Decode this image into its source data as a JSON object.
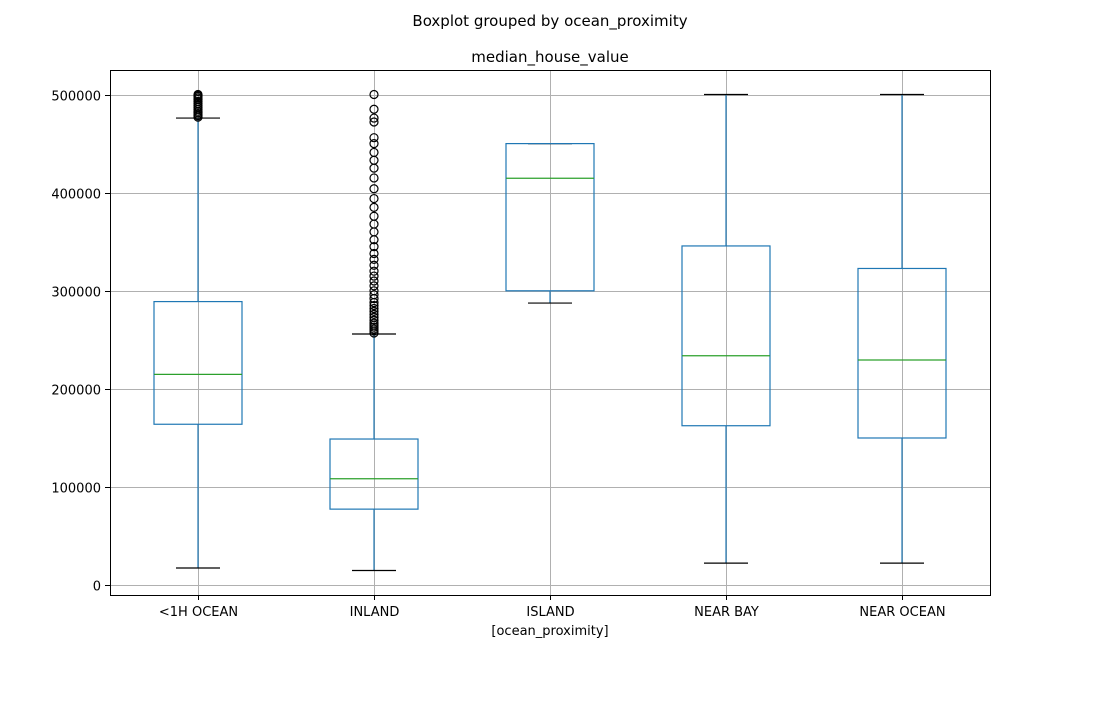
{
  "chart_data": {
    "type": "boxplot",
    "suptitle": "Boxplot grouped by ocean_proximity",
    "title": "median_house_value",
    "xlabel": "[ocean_proximity]",
    "ylabel": "",
    "ylim": [
      -10000,
      525000
    ],
    "yticks": [
      0,
      100000,
      200000,
      300000,
      400000,
      500000
    ],
    "grid": true,
    "colors": {
      "box": "#1f77b4",
      "median": "#2ca02c",
      "cap": "#000000",
      "grid": "#b0b0b0"
    },
    "categories": [
      "<1H OCEAN",
      "INLAND",
      "ISLAND",
      "NEAR BAY",
      "NEAR OCEAN"
    ],
    "boxes": [
      {
        "category": "<1H OCEAN",
        "whisker_low": 17500,
        "q1": 164000,
        "median": 214800,
        "q3": 289000,
        "whisker_high": 476000,
        "outliers": [
          477000,
          478500,
          480000,
          481500,
          483000,
          485000,
          487000,
          489000,
          491000,
          493000,
          495000,
          496500,
          498000,
          499000,
          500001
        ]
      },
      {
        "category": "INLAND",
        "whisker_low": 14999,
        "q1": 77500,
        "median": 108500,
        "q3": 148950,
        "whisker_high": 256000,
        "outliers": [
          257000,
          259000,
          261000,
          263000,
          265000,
          267000,
          270000,
          273000,
          276000,
          279000,
          282000,
          285000,
          288000,
          292000,
          296000,
          300000,
          305000,
          310000,
          315000,
          320000,
          326000,
          332000,
          338000,
          345000,
          352000,
          360000,
          368000,
          376000,
          385000,
          394000,
          404000,
          415000,
          425000,
          433000,
          441000,
          450000,
          456000,
          472000,
          476000,
          485000,
          500001
        ]
      },
      {
        "category": "ISLAND",
        "whisker_low": 287500,
        "q1": 300000,
        "median": 414700,
        "q3": 450000,
        "whisker_high": 450000,
        "outliers": []
      },
      {
        "category": "NEAR BAY",
        "whisker_low": 22500,
        "q1": 162500,
        "median": 233800,
        "q3": 345700,
        "whisker_high": 500001,
        "outliers": []
      },
      {
        "category": "NEAR OCEAN",
        "whisker_low": 22500,
        "q1": 150000,
        "median": 229500,
        "q3": 322750,
        "whisker_high": 500001,
        "outliers": []
      }
    ]
  }
}
